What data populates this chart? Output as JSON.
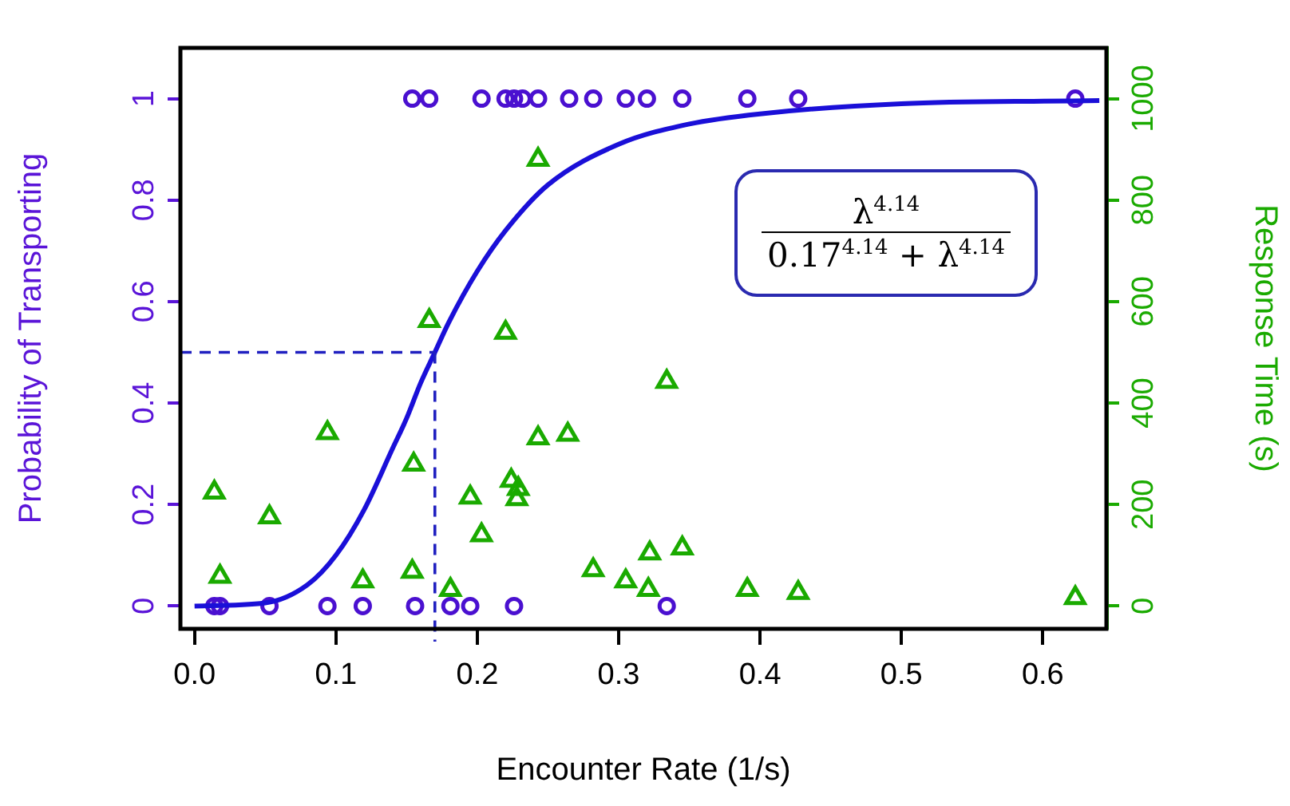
{
  "chart_data": {
    "type": "scatter",
    "xlabel": "Encounter Rate (1/s)",
    "ylabel": "Probability of Transporting",
    "y2label": "Response Time (s)",
    "xlim": [
      -0.01,
      0.645
    ],
    "xticks": [
      {
        "value": 0,
        "label": "0.0"
      },
      {
        "value": 0.1,
        "label": "0.1"
      },
      {
        "value": 0.2,
        "label": "0.2"
      },
      {
        "value": 0.3,
        "label": "0.3"
      },
      {
        "value": 0.4,
        "label": "0.4"
      },
      {
        "value": 0.5,
        "label": "0.5"
      },
      {
        "value": 0.6,
        "label": "0.6"
      }
    ],
    "ylim": [
      -0.045,
      1.1
    ],
    "yticks": [
      0,
      0.2,
      0.4,
      0.6,
      0.8,
      1
    ],
    "y2lim": [
      -45,
      1100
    ],
    "y2ticks": [
      0,
      200,
      400,
      600,
      800,
      1000
    ],
    "grid": false,
    "legend": false,
    "annotations": [
      "λ$^{4.14}$",
      "0.17$^{4.14}$ + λ$^{4.14}$"
    ],
    "ref_lines": [
      {
        "axis": "y",
        "value": 0.5,
        "color": "#2020c0",
        "line_style": "dashed"
      },
      {
        "axis": "x",
        "value": 0.17,
        "color": "#2020c0",
        "line_style": "dashed"
      }
    ],
    "series": [
      {
        "type": "line",
        "color": "#1a0fd8",
        "marker": "none",
        "line_style": "solid",
        "x": [
          0,
          0.05,
          0.08,
          0.1,
          0.12,
          0.14,
          0.15,
          0.16,
          0.17,
          0.18,
          0.2,
          0.22,
          0.25,
          0.3,
          0.35,
          0.4,
          0.5,
          0.64
        ],
        "values": [
          0,
          0.006,
          0.042,
          0.1,
          0.19,
          0.31,
          0.37,
          0.44,
          0.5,
          0.56,
          0.66,
          0.74,
          0.83,
          0.91,
          0.95,
          0.97,
          0.99,
          0.996
        ]
      },
      {
        "color": "#4a10d0",
        "marker": "circle",
        "x": [
          0.154,
          0.166,
          0.203,
          0.22,
          0.226,
          0.232,
          0.243,
          0.265,
          0.282,
          0.305,
          0.32,
          0.345,
          0.391,
          0.427,
          0.623,
          0.014,
          0.018,
          0.053,
          0.094,
          0.119,
          0.156,
          0.181,
          0.195,
          0.226,
          0.334
        ],
        "values": [
          1,
          1,
          1,
          1,
          1,
          1,
          1,
          1,
          1,
          1,
          1,
          1,
          1,
          1,
          1,
          0,
          0,
          0,
          0,
          0,
          0,
          0,
          0,
          0,
          0
        ]
      },
      {
        "axis": "y2",
        "color": "#1aaa00",
        "marker": "triangle",
        "x": [
          0.014,
          0.018,
          0.053,
          0.094,
          0.119,
          0.154,
          0.155,
          0.166,
          0.181,
          0.195,
          0.203,
          0.22,
          0.224,
          0.228,
          0.229,
          0.243,
          0.243,
          0.264,
          0.282,
          0.305,
          0.321,
          0.322,
          0.334,
          0.345,
          0.391,
          0.427,
          0.623
        ],
        "values": [
          224,
          58,
          175,
          341,
          49,
          68,
          279,
          562,
          32,
          214,
          140,
          539,
          247,
          211,
          231,
          880,
          331,
          338,
          71,
          49,
          32,
          104,
          442,
          114,
          32,
          26,
          16
        ]
      }
    ]
  }
}
